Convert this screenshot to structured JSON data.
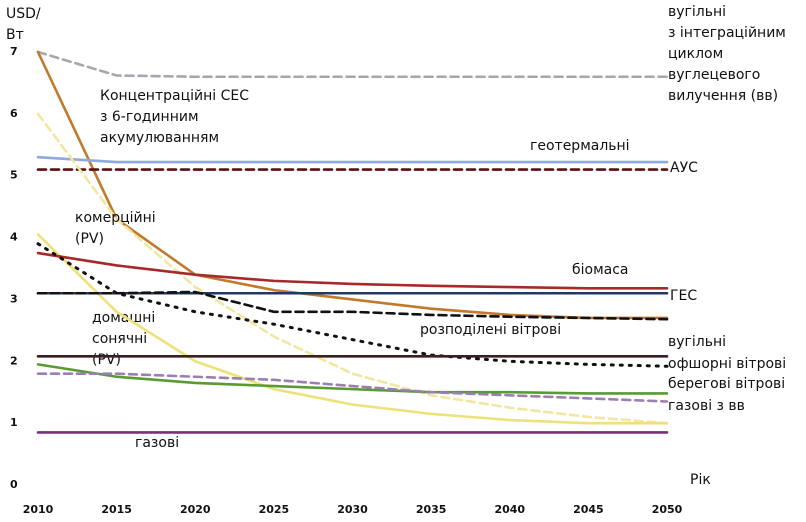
{
  "chart_data": {
    "type": "line",
    "ylabel": "USD/\nВт",
    "xlabel": "Рік",
    "x": [
      2010,
      2015,
      2020,
      2025,
      2030,
      2035,
      2040,
      2045,
      2050
    ],
    "xlim": [
      2010,
      2050
    ],
    "xticks": [
      2010,
      2015,
      2020,
      2025,
      2030,
      2035,
      2040,
      2045,
      2050
    ],
    "ylim": [
      0,
      7
    ],
    "yticks": [
      0,
      1,
      2,
      3,
      4,
      5,
      6,
      7
    ],
    "grid": false,
    "series": [
      {
        "name": "вугільні\nз інтеграційним\nциклом\nвуглецевого\nвилучення (вв)",
        "color": "#a6a6ad",
        "dash": "dashed",
        "values": [
          7.0,
          6.62,
          6.6,
          6.6,
          6.6,
          6.6,
          6.6,
          6.6,
          6.6
        ]
      },
      {
        "name": "Концентраційні СЕС\nз 6-годинним\nакумулюванням",
        "color": "#c07a2a",
        "dash": "solid",
        "values": [
          7.0,
          4.3,
          3.4,
          3.15,
          3.0,
          2.85,
          2.75,
          2.7,
          2.7
        ]
      },
      {
        "name": "геотермальні",
        "color": "#8ea9db",
        "dash": "solid",
        "values": [
          5.3,
          5.22,
          5.22,
          5.22,
          5.22,
          5.22,
          5.22,
          5.22,
          5.22
        ]
      },
      {
        "name": "АУС",
        "color": "#5a1010",
        "dash": "dashed",
        "values": [
          5.1,
          5.1,
          5.1,
          5.1,
          5.1,
          5.1,
          5.1,
          5.1,
          5.1
        ]
      },
      {
        "name": "домашні\nсонячні\n(PV)",
        "color": "#f2e6a0",
        "dash": "dashed",
        "values": [
          6.0,
          4.3,
          3.2,
          2.4,
          1.8,
          1.45,
          1.25,
          1.1,
          1.0
        ]
      },
      {
        "name": "комерційні\n(PV)",
        "color": "#ede27a",
        "dash": "solid",
        "values": [
          4.05,
          2.8,
          2.0,
          1.55,
          1.3,
          1.15,
          1.05,
          1.0,
          1.0
        ]
      },
      {
        "name": "біомаса",
        "color": "#a52a2a",
        "dash": "solid",
        "values": [
          3.75,
          3.55,
          3.4,
          3.3,
          3.25,
          3.22,
          3.2,
          3.18,
          3.18
        ]
      },
      {
        "name": "ГЕС",
        "color": "#1f3864",
        "dash": "solid",
        "values": [
          3.1,
          3.1,
          3.1,
          3.1,
          3.1,
          3.1,
          3.1,
          3.1,
          3.1
        ]
      },
      {
        "name": "розподілені вітрові",
        "color": "#111111",
        "dash": "dashed",
        "values": [
          3.1,
          3.1,
          3.12,
          2.8,
          2.8,
          2.75,
          2.72,
          2.7,
          2.68
        ]
      },
      {
        "name": "офшорні вітрові",
        "color": "#111111",
        "dash": "dotted",
        "values": [
          3.9,
          3.1,
          2.8,
          2.6,
          2.35,
          2.1,
          2.0,
          1.95,
          1.92
        ]
      },
      {
        "name": "вугільні",
        "color": "#3b1f1f",
        "dash": "solid",
        "values": [
          2.08,
          2.08,
          2.08,
          2.08,
          2.08,
          2.08,
          2.08,
          2.08,
          2.08
        ]
      },
      {
        "name": "берегові вітрові",
        "color": "#5a9a32",
        "dash": "solid",
        "values": [
          1.95,
          1.75,
          1.65,
          1.6,
          1.55,
          1.5,
          1.5,
          1.48,
          1.48
        ]
      },
      {
        "name": "газові з вв",
        "color": "#9b7fb3",
        "dash": "dashed",
        "values": [
          1.8,
          1.8,
          1.75,
          1.7,
          1.6,
          1.5,
          1.45,
          1.4,
          1.35
        ]
      },
      {
        "name": "газові",
        "color": "#7b2d7b",
        "dash": "solid",
        "values": [
          0.85,
          0.85,
          0.85,
          0.85,
          0.85,
          0.85,
          0.85,
          0.85,
          0.85
        ]
      }
    ]
  }
}
